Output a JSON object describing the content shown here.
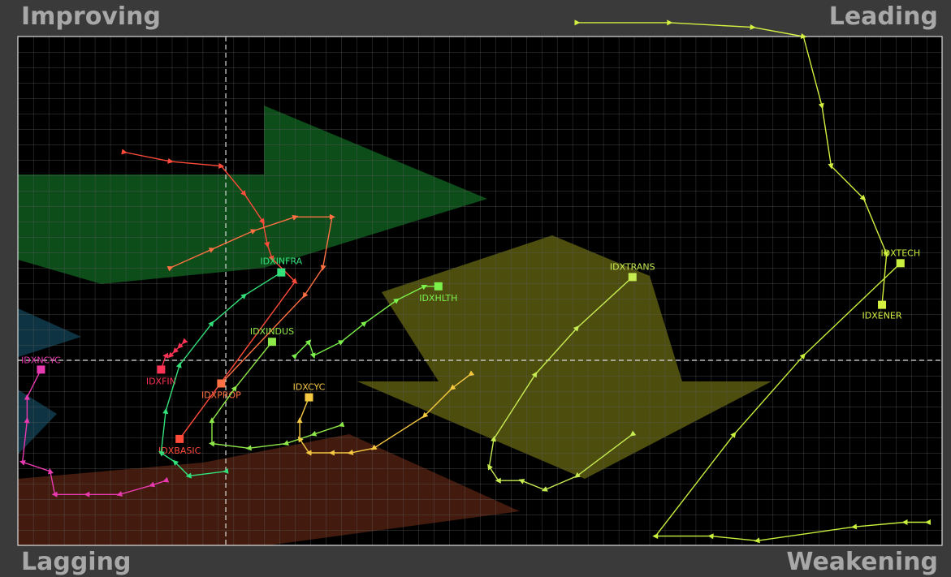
{
  "chart_data": {
    "type": "rrg",
    "quadrants": {
      "top_left": "Improving",
      "top_right": "Leading",
      "bottom_left": "Lagging",
      "bottom_right": "Weakening"
    },
    "xlim": [
      95.5,
      115.5
    ],
    "ylim": [
      96,
      107
    ],
    "xref": 100,
    "yref": 100,
    "grid": true,
    "series": [
      {
        "name": "IDXNCYC",
        "color": "#e83ab0",
        "x": [
          98.7,
          98.4,
          97.7,
          97.0,
          96.3,
          96.2,
          95.6,
          95.7,
          95.7,
          96.0
        ],
        "y": [
          97.4,
          97.3,
          97.1,
          97.1,
          97.1,
          97.6,
          97.8,
          98.7,
          99.2,
          99.8
        ]
      },
      {
        "name": "IDXFIN",
        "color": "#ff3355",
        "x": [
          99.1,
          99.0,
          98.9,
          98.8,
          98.7,
          98.6
        ],
        "y": [
          100.4,
          100.3,
          100.2,
          100.1,
          100.1,
          99.8
        ]
      },
      {
        "name": "IDXBASIC",
        "color": "#ff4b3a",
        "x": [
          97.8,
          98.8,
          99.9,
          100.4,
          100.8,
          100.9,
          101.0,
          101.5,
          99.0
        ],
        "y": [
          104.5,
          104.3,
          104.2,
          103.6,
          103.0,
          102.5,
          102.2,
          101.7,
          98.3
        ]
      },
      {
        "name": "IDXPROP",
        "color": "#ff7043",
        "x": [
          98.8,
          99.7,
          100.6,
          101.5,
          102.3,
          102.1,
          101.7,
          99.9
        ],
        "y": [
          102.0,
          102.4,
          102.8,
          103.1,
          103.1,
          102.0,
          101.4,
          99.5
        ]
      },
      {
        "name": "IDXINFRA",
        "color": "#33e07a",
        "x": [
          100.0,
          99.2,
          98.9,
          98.6,
          98.7,
          99.0,
          99.7,
          100.4,
          101.2
        ],
        "y": [
          97.6,
          97.5,
          97.8,
          98.0,
          98.9,
          99.9,
          100.8,
          101.4,
          101.9
        ]
      },
      {
        "name": "IDXINDUS",
        "color": "#8fe84a",
        "x": [
          102.5,
          101.9,
          101.3,
          100.5,
          99.7,
          99.7,
          100.2,
          101.0
        ],
        "y": [
          98.6,
          98.4,
          98.2,
          98.1,
          98.2,
          98.7,
          99.4,
          100.4
        ]
      },
      {
        "name": "IDXHLTH",
        "color": "#7cf04a",
        "x": [
          101.5,
          101.8,
          101.9,
          102.5,
          103.0,
          103.7,
          104.3,
          104.6
        ],
        "y": [
          100.1,
          100.4,
          100.1,
          100.4,
          100.8,
          101.3,
          101.6,
          101.6
        ]
      },
      {
        "name": "IDXCYC",
        "color": "#f5c842",
        "x": [
          105.3,
          104.9,
          104.3,
          103.2,
          102.7,
          102.3,
          101.8,
          101.6,
          101.6,
          101.8
        ],
        "y": [
          99.7,
          99.4,
          98.8,
          98.1,
          98.0,
          98.0,
          98.0,
          98.3,
          98.7,
          99.2
        ]
      },
      {
        "name": "IDXTRANS",
        "color": "#c6ec52",
        "x": [
          108.8,
          107.6,
          106.9,
          106.4,
          105.9,
          105.7,
          105.8,
          106.7,
          107.6,
          108.8
        ],
        "y": [
          98.4,
          97.5,
          97.2,
          97.4,
          97.4,
          97.7,
          98.3,
          99.7,
          100.7,
          101.8
        ]
      },
      {
        "name": "IDXTECH",
        "color": "#c8f03c",
        "x": [
          115.2,
          114.7,
          113.6,
          111.5,
          110.5,
          109.3,
          111.0,
          112.5,
          114.6
        ],
        "y": [
          96.5,
          96.5,
          96.4,
          96.1,
          96.2,
          96.2,
          98.4,
          100.1,
          102.1
        ]
      },
      {
        "name": "IDXENER",
        "color": "#d4f040",
        "x": [
          107.6,
          109.6,
          111.4,
          112.5,
          112.9,
          113.1,
          113.8,
          114.3,
          114.2
        ],
        "y": [
          107.3,
          107.3,
          107.2,
          107.0,
          105.5,
          104.2,
          103.5,
          102.3,
          101.2
        ]
      }
    ]
  }
}
